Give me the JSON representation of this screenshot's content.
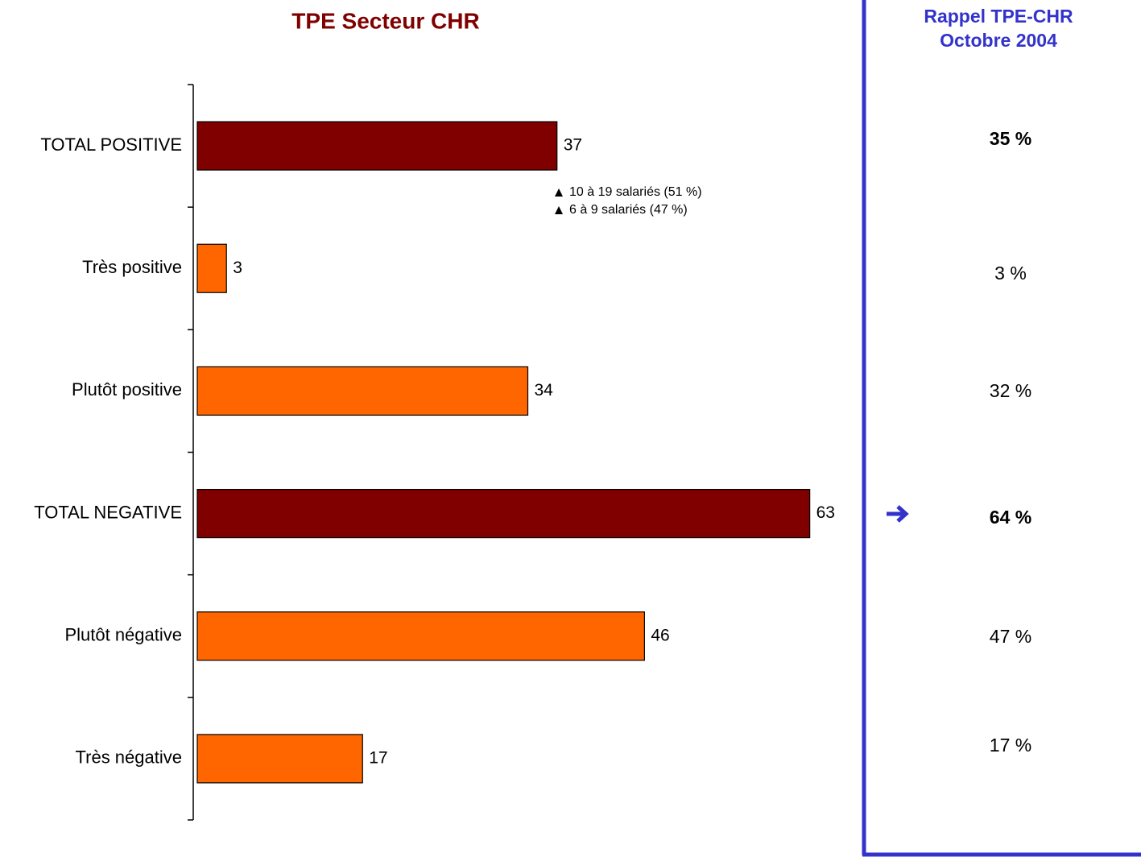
{
  "chart_data": {
    "type": "hbar",
    "title": "TPE Secteur CHR",
    "categories": [
      "TOTAL POSITIVE",
      "Très positive",
      "Plutôt positive",
      "TOTAL NEGATIVE",
      "Plutôt négative",
      "Très négative"
    ],
    "values": [
      37,
      3,
      34,
      63,
      46,
      17
    ],
    "colors": [
      "#800000",
      "#ff6600",
      "#ff6600",
      "#800000",
      "#ff6600",
      "#ff6600"
    ],
    "xlim": [
      0,
      68
    ],
    "annotations": [
      "10 à 19 salariés (51 %)",
      "6 à 9 salariés (47 %)"
    ]
  },
  "recall": {
    "title": [
      "Rappel TPE-CHR",
      "Octobre 2004"
    ],
    "items": [
      "35 %",
      "3 %",
      "32 %",
      "64 %",
      "47 %",
      "17 %"
    ],
    "bold": [
      true,
      false,
      false,
      true,
      false,
      false
    ]
  }
}
